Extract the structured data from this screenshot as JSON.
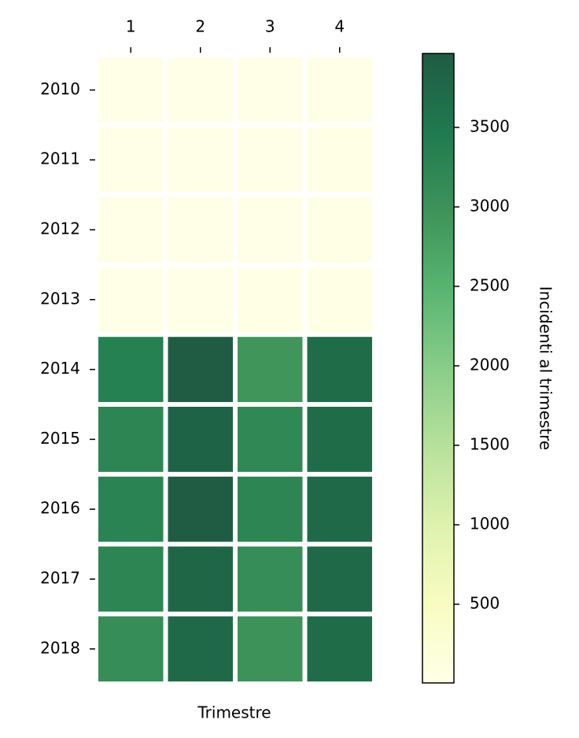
{
  "chart_data": {
    "type": "heatmap",
    "x_label": "Trimestre",
    "x_categories": [
      "1",
      "2",
      "3",
      "4"
    ],
    "y_categories": [
      "2010",
      "2011",
      "2012",
      "2013",
      "2014",
      "2015",
      "2016",
      "2017",
      "2018"
    ],
    "values": [
      [
        5,
        10,
        15,
        20
      ],
      [
        10,
        12,
        18,
        22
      ],
      [
        12,
        15,
        20,
        25
      ],
      [
        15,
        20,
        25,
        30
      ],
      [
        3350,
        3950,
        2950,
        3700
      ],
      [
        3250,
        3850,
        3200,
        3700
      ],
      [
        3300,
        3965,
        3250,
        3750
      ],
      [
        3250,
        3800,
        3100,
        3750
      ],
      [
        3100,
        3750,
        3000,
        3700
      ]
    ],
    "colormap": [
      "#ffffe5",
      "#f7fcb9",
      "#d9f0a3",
      "#addd8e",
      "#78c679",
      "#41ab5d",
      "#238443",
      "#006837",
      "#004529"
    ],
    "opacity": 0.88,
    "colorbar_label": "Incidenti al trimestre",
    "zlim": [
      5,
      3965
    ],
    "zticks": [
      500,
      1000,
      1500,
      2000,
      2500,
      3000,
      3500
    ]
  }
}
